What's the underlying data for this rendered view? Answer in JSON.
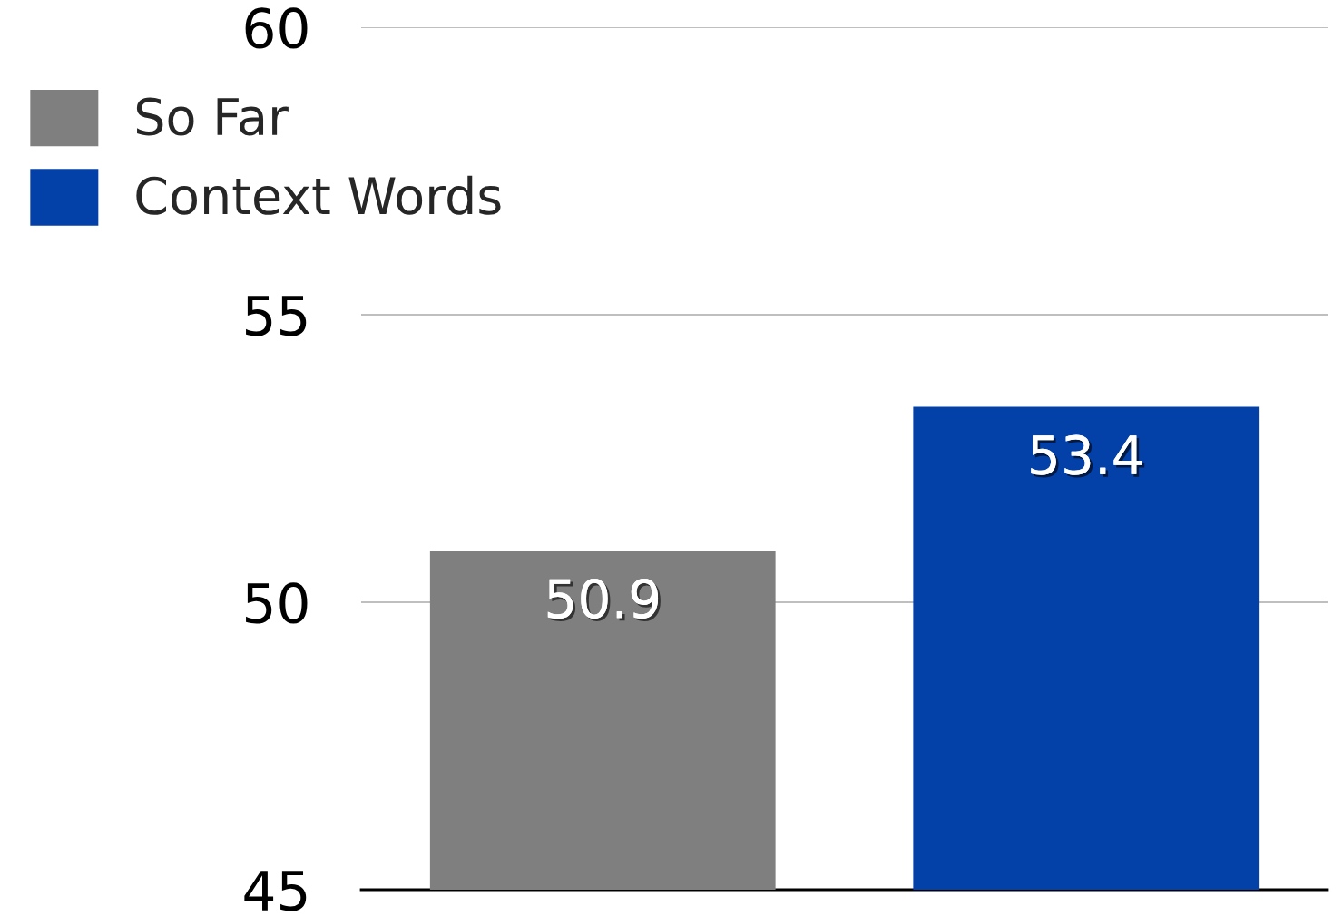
{
  "chart_data": {
    "type": "bar",
    "categories": [
      null,
      null
    ],
    "series": [
      {
        "name": "So Far",
        "color": "#7f7f7f",
        "values": [
          50.9,
          null
        ]
      },
      {
        "name": "Context Words",
        "color": "#0340a8",
        "values": [
          null,
          53.4
        ]
      }
    ],
    "ylim": [
      45,
      60
    ],
    "yticks": [
      45,
      50,
      55,
      60
    ],
    "grid": "y",
    "legend": "top left",
    "data_labels": true
  }
}
